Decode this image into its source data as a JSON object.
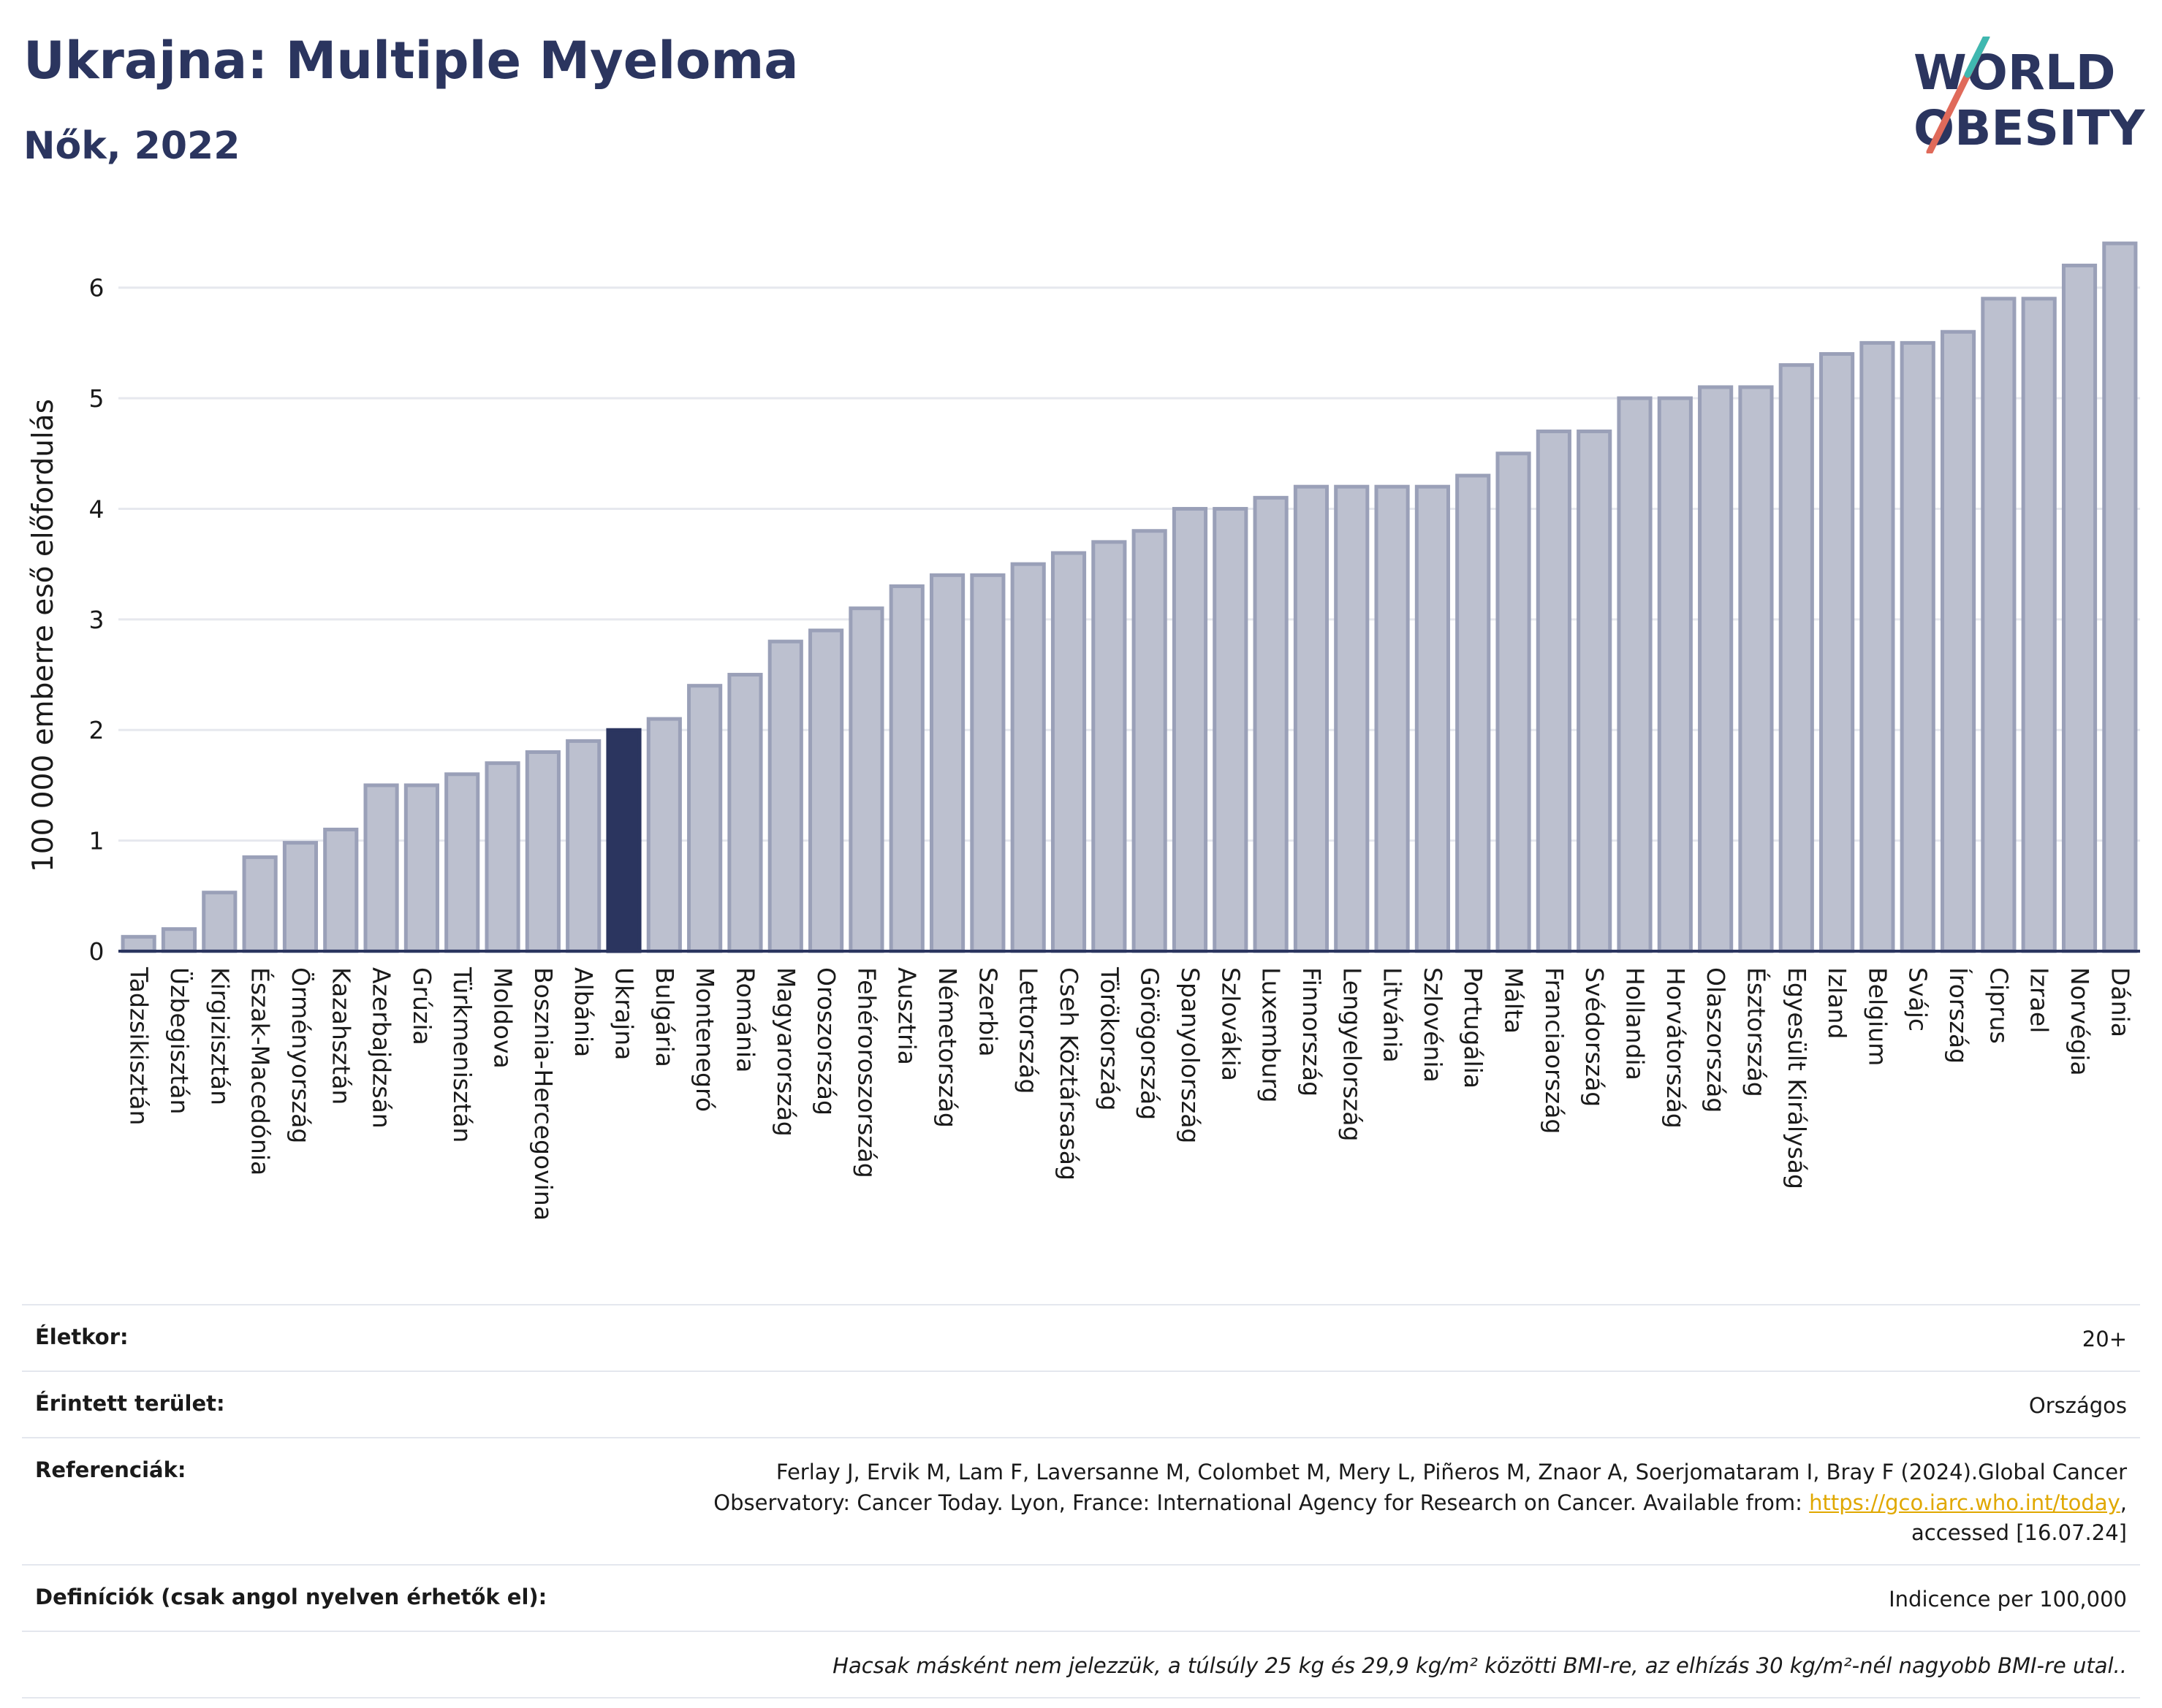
{
  "header": {
    "title": "Ukrajna: Multiple Myeloma",
    "subtitle": "Nők, 2022"
  },
  "logo": {
    "line1": "WORLD",
    "line2": "OBESITY",
    "accent": "#e06a5a",
    "accent2": "#3fb8b0"
  },
  "colors": {
    "bar": "#bcc0cf",
    "bar_stroke": "#9aa0b8",
    "highlight": "#2b355f",
    "grid": "#e6e8ee",
    "axis": "#2b355f"
  },
  "chart_data": {
    "type": "bar",
    "ylabel": "100 000 emberre eső előfordulás",
    "ylim": [
      0,
      6.5
    ],
    "yticks": [
      0,
      1,
      2,
      3,
      4,
      5,
      6
    ],
    "highlight": "Ukrajna",
    "grid": true,
    "categories": [
      "Tadzsikisztán",
      "Üzbegisztán",
      "Kirgizisztán",
      "Észak-Macedónia",
      "Örményország",
      "Kazahsztán",
      "Azerbajdzsán",
      "Grúzia",
      "Türkmenisztán",
      "Moldova",
      "Bosznia-Hercegovina",
      "Albánia",
      "Ukrajna",
      "Bulgária",
      "Montenegró",
      "Románia",
      "Magyarország",
      "Oroszország",
      "Fehéroroszország",
      "Ausztria",
      "Németország",
      "Szerbia",
      "Lettország",
      "Cseh Köztársaság",
      "Törökország",
      "Görögország",
      "Spanyolország",
      "Szlovákia",
      "Luxemburg",
      "Finnország",
      "Lengyelország",
      "Litvánia",
      "Szlovénia",
      "Portugália",
      "Málta",
      "Franciaország",
      "Svédország",
      "Hollandia",
      "Horvátország",
      "Olaszország",
      "Észtország",
      "Egyesült Királyság",
      "Izland",
      "Belgium",
      "Svájc",
      "Írország",
      "Ciprus",
      "Izrael",
      "Norvégia",
      "Dánia"
    ],
    "values": [
      0.13,
      0.2,
      0.53,
      0.85,
      0.98,
      1.1,
      1.5,
      1.5,
      1.6,
      1.7,
      1.8,
      1.9,
      2.0,
      2.1,
      2.4,
      2.5,
      2.8,
      2.9,
      3.1,
      3.3,
      3.4,
      3.4,
      3.5,
      3.6,
      3.7,
      3.8,
      4.0,
      4.0,
      4.1,
      4.2,
      4.2,
      4.2,
      4.2,
      4.3,
      4.5,
      4.7,
      4.7,
      5.0,
      5.0,
      5.1,
      5.1,
      5.3,
      5.4,
      5.5,
      5.5,
      5.6,
      5.9,
      5.9,
      6.2,
      6.4
    ]
  },
  "info": {
    "age_label": "Életkor:",
    "age_value": "20+",
    "area_label": "Érintett terület:",
    "area_value": "Országos",
    "refs_label": "Referenciák:",
    "refs_line1": "Ferlay J, Ervik M, Lam F, Laversanne M, Colombet M, Mery L, Piñeros M, Znaor A, Soerjomataram I, Bray F (2024).Global Cancer",
    "refs_line2": "Observatory: Cancer Today. Lyon, France: International Agency for Research on Cancer. Available from:",
    "refs_link": "https://gco.iarc.who.int/today",
    "refs_line3": "accessed [16.07.24]",
    "defs_label": "Definíciók (csak angol nyelven érhetők el):",
    "defs_value": "Indicence per 100,000",
    "footnote": "Hacsak másként nem jelezzük, a túlsúly 25 kg és 29,9 kg/m² közötti BMI-re, az elhízás 30 kg/m²-nél nagyobb BMI-re utal.."
  }
}
